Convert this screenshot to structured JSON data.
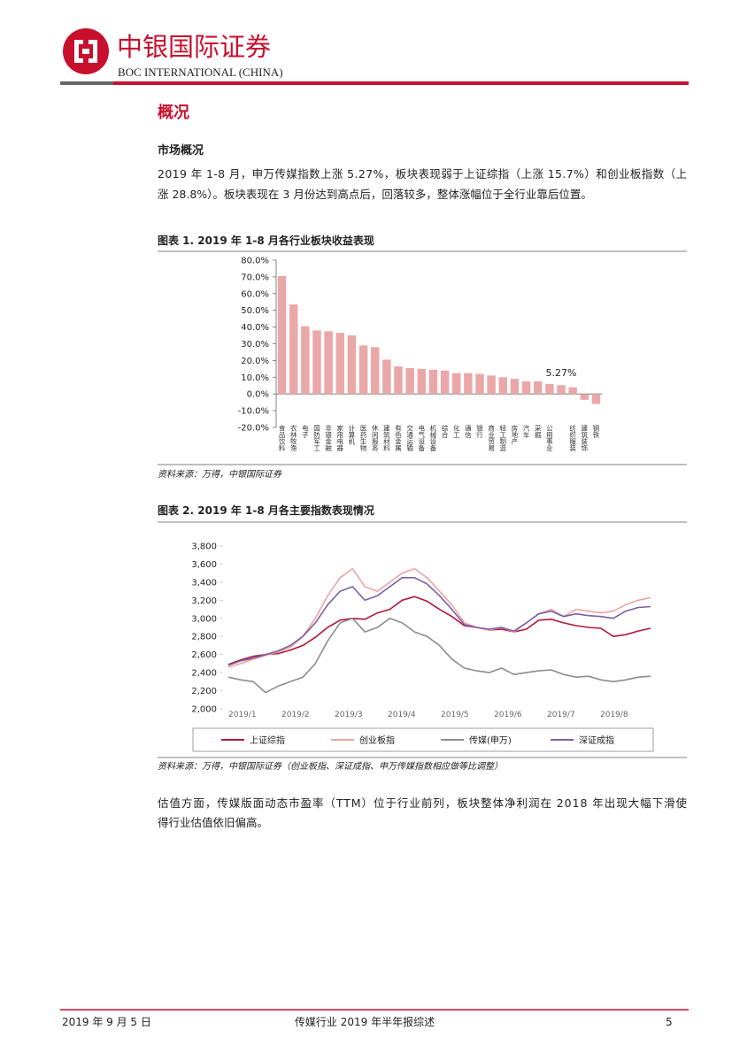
{
  "header": {
    "name_cn": "中银国际证券",
    "name_en": "BOC INTERNATIONAL (CHINA)"
  },
  "section_title": "概况",
  "subsection_title": "市场概况",
  "paragraph_1": [
    "2019 年 1-8 月，申万传媒指数上涨 5.27%，板块表现弱于上证综指（上涨 15.7%）和创业板指数（上",
    "涨 28.8%）。板块表现在 3 月份达到高点后，回落较多，整体涨幅位于全行业靠后位置。"
  ],
  "paragraph_2": [
    "估值方面，传媒版面动态市盈率（TTM）位于行业前列，板块整体净利润在 2018 年出现大幅下滑使",
    "得行业估值依旧偏高。"
  ],
  "chart_data": [
    {
      "type": "bar",
      "title": "图表 1. 2019 年 1-8 月各行业板块收益表现",
      "source": "资料来源：万得，中银国际证券",
      "categories": [
        "食品饮料",
        "农林牧渔",
        "电子",
        "国防军工",
        "非银金融",
        "家用电器",
        "计算机",
        "医药生物",
        "休闲服务",
        "建筑材料",
        "有色金属",
        "交通运输",
        "电气设备",
        "机械设备",
        "综合",
        "化工",
        "通信",
        "银行",
        "商业贸易",
        "轻工制造",
        "房地产",
        "汽车",
        "采掘",
        "公用事业",
        null,
        "纺织服装",
        "建筑装饰",
        "钢铁"
      ],
      "values": [
        70.5,
        53.5,
        40.5,
        38,
        37.5,
        36.5,
        35,
        29,
        28,
        20.5,
        16.5,
        15.5,
        15,
        14.5,
        14,
        12.5,
        12.5,
        12,
        11,
        10,
        9,
        7.5,
        7.5,
        6,
        5.27,
        4,
        -3.5,
        -6
      ],
      "value_labels": [
        null,
        null,
        null,
        null,
        null,
        null,
        null,
        null,
        null,
        null,
        null,
        null,
        null,
        null,
        null,
        null,
        null,
        null,
        null,
        null,
        null,
        null,
        null,
        null,
        "5.27%",
        null,
        null,
        null
      ],
      "color": "#eaa7a7",
      "ylim": [
        -20,
        80
      ],
      "yticks": [
        {
          "value": -20,
          "label": "-20.0%"
        },
        {
          "value": -10,
          "label": "-10.0%"
        },
        {
          "value": 0,
          "label": "0.0%"
        },
        {
          "value": 10,
          "label": "10.0%"
        },
        {
          "value": 20,
          "label": "20.0%"
        },
        {
          "value": 30,
          "label": "30.0%"
        },
        {
          "value": 40,
          "label": "40.0%"
        },
        {
          "value": 50,
          "label": "50.0%"
        },
        {
          "value": 60,
          "label": "60.0%"
        },
        {
          "value": 70,
          "label": "70.0%"
        },
        {
          "value": 80,
          "label": "80.0%"
        }
      ]
    },
    {
      "type": "line",
      "title": "图表 2. 2019 年 1-8 月各主要指数表现情况",
      "source": "资料来源：万得，中银国际证券（创业板指、深证成指、申万传媒指数相应做等比调整）",
      "xticklabels": [
        "2019/1",
        "2019/2",
        "2019/3",
        "2019/4",
        "2019/5",
        "2019/6",
        "2019/7",
        "2019/8"
      ],
      "ylim": [
        2000,
        3800
      ],
      "yticks": [
        {
          "value": 2000,
          "label": "2,000"
        },
        {
          "value": 2200,
          "label": "2,200"
        },
        {
          "value": 2400,
          "label": "2,400"
        },
        {
          "value": 2600,
          "label": "2,600"
        },
        {
          "value": 2800,
          "label": "2,800"
        },
        {
          "value": 3000,
          "label": "3,000"
        },
        {
          "value": 3200,
          "label": "3,200"
        },
        {
          "value": 3400,
          "label": "3,400"
        },
        {
          "value": 3600,
          "label": "3,600"
        },
        {
          "value": 3800,
          "label": "3,800"
        }
      ],
      "series": [
        {
          "name": "上证综指",
          "color": "#b0183a",
          "values": [
            2490,
            2540,
            2580,
            2600,
            2610,
            2650,
            2700,
            2790,
            2900,
            2980,
            3000,
            2990,
            3060,
            3100,
            3200,
            3240,
            3190,
            3100,
            3020,
            2920,
            2900,
            2870,
            2880,
            2850,
            2880,
            2980,
            2990,
            2950,
            2920,
            2900,
            2890,
            2800,
            2820,
            2860,
            2890
          ]
        },
        {
          "name": "创业板指",
          "color": "#f0a2a2",
          "values": [
            2460,
            2500,
            2550,
            2590,
            2630,
            2680,
            2800,
            3000,
            3250,
            3450,
            3550,
            3350,
            3300,
            3400,
            3500,
            3550,
            3450,
            3300,
            3150,
            2950,
            2900,
            2870,
            2900,
            2850,
            2950,
            3050,
            3100,
            3020,
            3100,
            3080,
            3060,
            3080,
            3150,
            3200,
            3230
          ]
        },
        {
          "name": "传媒(申万)",
          "color": "#8c8c8c",
          "values": [
            2350,
            2320,
            2300,
            2180,
            2250,
            2300,
            2350,
            2500,
            2750,
            2950,
            3000,
            2850,
            2900,
            3000,
            2950,
            2850,
            2800,
            2700,
            2550,
            2450,
            2420,
            2400,
            2450,
            2380,
            2400,
            2420,
            2430,
            2380,
            2350,
            2360,
            2320,
            2300,
            2320,
            2350,
            2360
          ]
        },
        {
          "name": "深证成指",
          "color": "#7a5fa8",
          "values": [
            2480,
            2530,
            2560,
            2600,
            2640,
            2700,
            2800,
            2950,
            3150,
            3300,
            3350,
            3200,
            3250,
            3350,
            3450,
            3450,
            3380,
            3250,
            3100,
            2930,
            2900,
            2880,
            2900,
            2860,
            2950,
            3050,
            3080,
            3020,
            3050,
            3030,
            3020,
            3000,
            3080,
            3120,
            3130
          ]
        }
      ]
    }
  ],
  "footer": {
    "date": "2019 年 9 月 5 日",
    "report": "传媒行业 2019 年半年报综述",
    "page": "5"
  }
}
